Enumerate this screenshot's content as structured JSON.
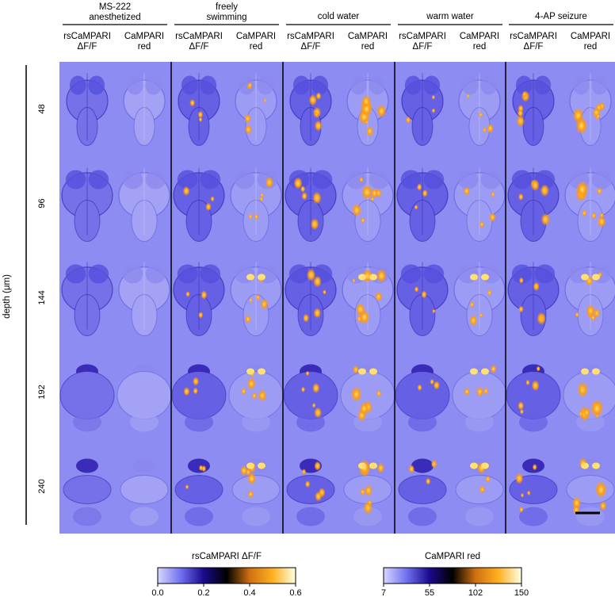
{
  "conditions": [
    {
      "title_lines": [
        "MS-222",
        "anesthetized"
      ],
      "col_labels": [
        [
          "rsCaMPARI",
          "ΔF/F"
        ],
        [
          "CaMPARI",
          "red"
        ]
      ],
      "activity": 0.1
    },
    {
      "title_lines": [
        "freely",
        "swimming"
      ],
      "col_labels": [
        [
          "rsCaMPARI",
          "ΔF/F"
        ],
        [
          "CaMPARI",
          "red"
        ]
      ],
      "activity": 0.6
    },
    {
      "title_lines": [
        "cold water"
      ],
      "col_labels": [
        [
          "rsCaMPARI",
          "ΔF/F"
        ],
        [
          "CaMPARI",
          "red"
        ]
      ],
      "activity": 0.95
    },
    {
      "title_lines": [
        "warm water"
      ],
      "col_labels": [
        [
          "rsCaMPARI",
          "ΔF/F"
        ],
        [
          "CaMPARI",
          "red"
        ]
      ],
      "activity": 0.55
    },
    {
      "title_lines": [
        "4-AP seizure"
      ],
      "col_labels": [
        [
          "rsCaMPARI",
          "ΔF/F"
        ],
        [
          "CaMPARI",
          "red"
        ]
      ],
      "activity": 1.0
    }
  ],
  "depth_axis": {
    "label": "depth (μm)",
    "values": [
      "48",
      "96",
      "144",
      "192",
      "240"
    ]
  },
  "colorbars": [
    {
      "title": "rsCaMPARI ΔF/F",
      "ticks": [
        "0.0",
        "0.2",
        "0.4",
        "0.6"
      ],
      "stops": [
        "#d6d6ff",
        "#7070f0",
        "#1a0a8c",
        "#000000",
        "#d07010",
        "#ffb020",
        "#ffffe6"
      ]
    },
    {
      "title": "CaMPARI red",
      "ticks": [
        "7",
        "55",
        "102",
        "150"
      ],
      "stops": [
        "#d6d6ff",
        "#7070f0",
        "#1a0a8c",
        "#000000",
        "#d07010",
        "#ffb020",
        "#ffffe6"
      ]
    }
  ],
  "colors": {
    "background": "#8d8cf2",
    "tissue": "#6a66e6",
    "dark": "#2a1aa8",
    "hot": "#ff9a10",
    "hot_light": "#ffe070"
  }
}
